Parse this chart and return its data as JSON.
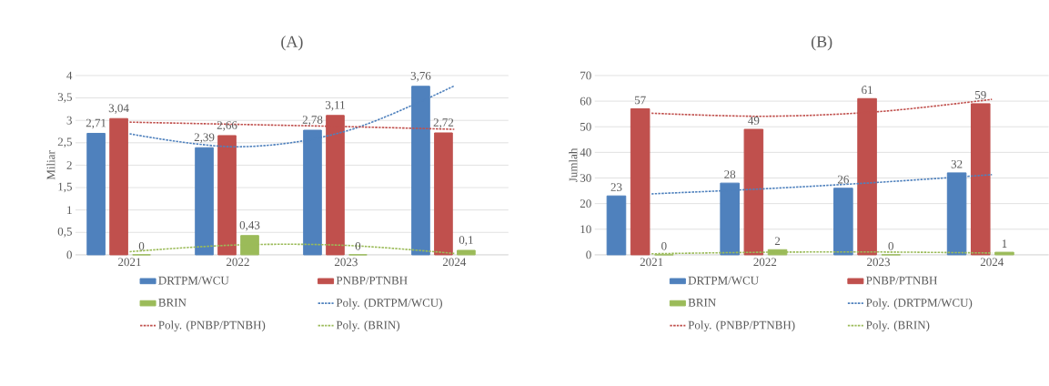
{
  "chart_data": [
    {
      "type": "bar",
      "title": "(A)",
      "ylabel": "Miliar",
      "categories": [
        "2021",
        "2022",
        "2023",
        "2024"
      ],
      "ylim": [
        0,
        4
      ],
      "yticks": [
        0,
        {
          "value": 0.5,
          "label": "0,5"
        },
        1,
        {
          "value": 1.5,
          "label": "1,5"
        },
        2,
        {
          "value": 2.5,
          "label": "2,5"
        },
        3,
        {
          "value": 3.5,
          "label": "3,5"
        },
        4
      ],
      "grid": "y",
      "legend": "bottom",
      "series": [
        {
          "name": "DRTPM/WCU",
          "color": "#4f81bd",
          "values": [
            2.71,
            2.39,
            2.78,
            3.76
          ],
          "value_labels": [
            "2,71",
            "2,39",
            "2,78",
            "3,76"
          ]
        },
        {
          "name": "PNBP/PTNBH",
          "color": "#c0504d",
          "values": [
            3.04,
            2.66,
            3.11,
            2.72
          ],
          "value_labels": [
            "3,04",
            "2,66",
            "3,11",
            "2,72"
          ]
        },
        {
          "name": "BRIN",
          "color": "#9bbb59",
          "values": [
            0,
            0.43,
            0,
            0.1
          ],
          "value_labels": [
            "0",
            "0,43",
            "0",
            "0,1"
          ]
        },
        {
          "name": "Poly. (DRTPM/WCU)",
          "type": "line",
          "line_style": "dotted",
          "color": "#4f81bd",
          "values": [
            2.7,
            2.41,
            2.76,
            3.77
          ]
        },
        {
          "name": "Poly. (PNBP/PTNBH)",
          "type": "line",
          "line_style": "dotted",
          "color": "#c0504d",
          "values": [
            2.96,
            2.91,
            2.86,
            2.8
          ]
        },
        {
          "name": "Poly. (BRIN)",
          "type": "line",
          "line_style": "dotted",
          "color": "#9bbb59",
          "values": [
            0.07,
            0.22,
            0.21,
            0.03
          ]
        }
      ]
    },
    {
      "type": "bar",
      "title": "(B)",
      "ylabel": "Jumlah",
      "categories": [
        "2021",
        "2022",
        "2023",
        "2024"
      ],
      "ylim": [
        0,
        70
      ],
      "yticks": [
        0,
        10,
        20,
        30,
        40,
        50,
        60,
        70
      ],
      "grid": "y",
      "legend": "bottom",
      "series": [
        {
          "name": "DRTPM/WCU",
          "color": "#4f81bd",
          "values": [
            23,
            28,
            26,
            32
          ],
          "value_labels": [
            "23",
            "28",
            "26",
            "32"
          ]
        },
        {
          "name": "PNBP/PTNBH",
          "color": "#c0504d",
          "values": [
            57,
            49,
            61,
            59
          ],
          "value_labels": [
            "57",
            "49",
            "61",
            "59"
          ]
        },
        {
          "name": "BRIN",
          "color": "#9bbb59",
          "values": [
            0,
            2,
            0,
            1
          ],
          "value_labels": [
            "0",
            "2",
            "0",
            "1"
          ]
        },
        {
          "name": "Poly. (DRTPM/WCU)",
          "type": "line",
          "line_style": "dotted",
          "color": "#4f81bd",
          "values": [
            23.8,
            25.8,
            28.3,
            31.3
          ]
        },
        {
          "name": "Poly. (PNBP/PTNBH)",
          "type": "line",
          "line_style": "dotted",
          "color": "#c0504d",
          "values": [
            55.3,
            54.1,
            55.9,
            60.7
          ]
        },
        {
          "name": "Poly. (BRIN)",
          "type": "line",
          "line_style": "dotted",
          "color": "#9bbb59",
          "values": [
            0.4,
            1,
            1.1,
            0.7
          ]
        }
      ]
    }
  ]
}
